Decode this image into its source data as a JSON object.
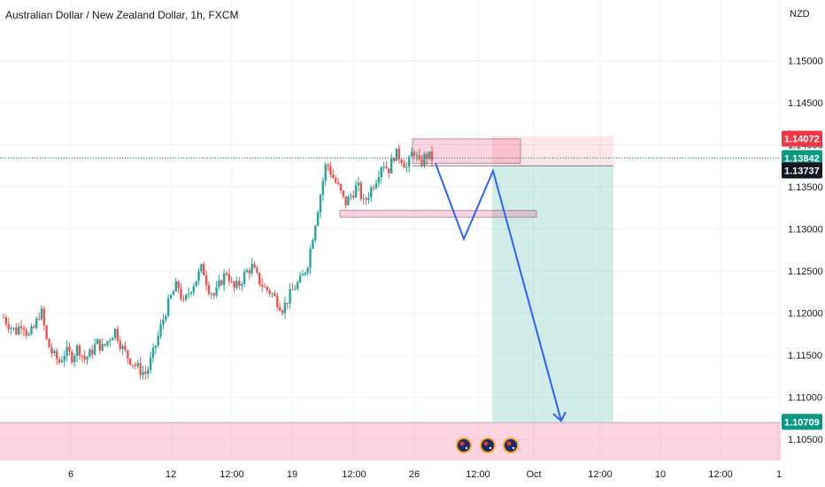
{
  "header": {
    "symbol_title": "Australian Dollar / New Zealand Dollar, 1h, FXCM",
    "currency": "NZD"
  },
  "colors": {
    "up": "#26a69a",
    "down": "#ef5350",
    "grid": "#f0f3fa",
    "projection": "#2962ff",
    "stop_zone": "rgba(242,54,69,0.12)",
    "target_zone": "rgba(8,153,129,0.18)",
    "supply_zone": "rgba(242,54,114,0.22)",
    "demand_zone": "rgba(242,54,114,0.22)",
    "last_price_tag": "#089981",
    "high_tag": "#f23645",
    "target_tag": "#089981"
  },
  "chart_data": {
    "type": "candlestick",
    "y_axis": {
      "range": [
        1.1025,
        1.1572
      ],
      "ticks": [
        "1.15000",
        "1.14500",
        "1.14000",
        "1.13500",
        "1.13000",
        "1.12500",
        "1.12000",
        "1.11500",
        "1.11000",
        "1.10500"
      ],
      "tick_values": [
        1.15,
        1.145,
        1.14,
        1.135,
        1.13,
        1.125,
        1.12,
        1.115,
        1.11,
        1.105
      ]
    },
    "x_axis": {
      "labels": [
        "6",
        "12",
        "12:00",
        "19",
        "12:00",
        "26",
        "12:00",
        "Oct",
        "12:00",
        "10",
        "12:00",
        "1"
      ]
    },
    "price_tags": [
      {
        "name": "high",
        "label": "1.14072",
        "value": 1.14072
      },
      {
        "name": "last",
        "label": "1.13842",
        "value": 1.13842
      },
      {
        "name": "prev",
        "label": "1.13737",
        "value": 1.13737
      },
      {
        "name": "target",
        "label": "1.10709",
        "value": 1.10709
      }
    ],
    "zones": [
      {
        "name": "supply-zone",
        "top": 1.1407,
        "bottom": 1.1378
      },
      {
        "name": "demand-zone",
        "top": 1.1322,
        "bottom": 1.1314
      },
      {
        "name": "bottom-target-zone",
        "top": 1.107,
        "bottom": 1.1025
      }
    ],
    "position": {
      "entry": 1.1375,
      "stop": 1.141,
      "target": 1.107
    },
    "projection_path": [
      {
        "t": "start",
        "value": 1.1378
      },
      {
        "t": "dip",
        "value": 1.1288
      },
      {
        "t": "retest",
        "value": 1.1369
      },
      {
        "t": "end",
        "value": 1.1072
      }
    ],
    "candles_close_path": [
      1.1195,
      1.1185,
      1.1178,
      1.119,
      1.1172,
      1.1183,
      1.1205,
      1.1165,
      1.115,
      1.1142,
      1.1155,
      1.1148,
      1.116,
      1.1145,
      1.1152,
      1.1165,
      1.1158,
      1.117,
      1.118,
      1.116,
      1.1148,
      1.114,
      1.1132,
      1.1128,
      1.115,
      1.1175,
      1.12,
      1.122,
      1.1235,
      1.121,
      1.1228,
      1.124,
      1.1255,
      1.123,
      1.122,
      1.1238,
      1.125,
      1.1228,
      1.1235,
      1.1248,
      1.1255,
      1.124,
      1.123,
      1.1225,
      1.1215,
      1.1205,
      1.122,
      1.1232,
      1.124,
      1.126,
      1.13,
      1.134,
      1.138,
      1.1362,
      1.1348,
      1.133,
      1.134,
      1.1352,
      1.133,
      1.1345,
      1.136,
      1.138,
      1.137,
      1.139,
      1.1385,
      1.1372,
      1.1395,
      1.1375,
      1.1388,
      1.1384
    ]
  }
}
